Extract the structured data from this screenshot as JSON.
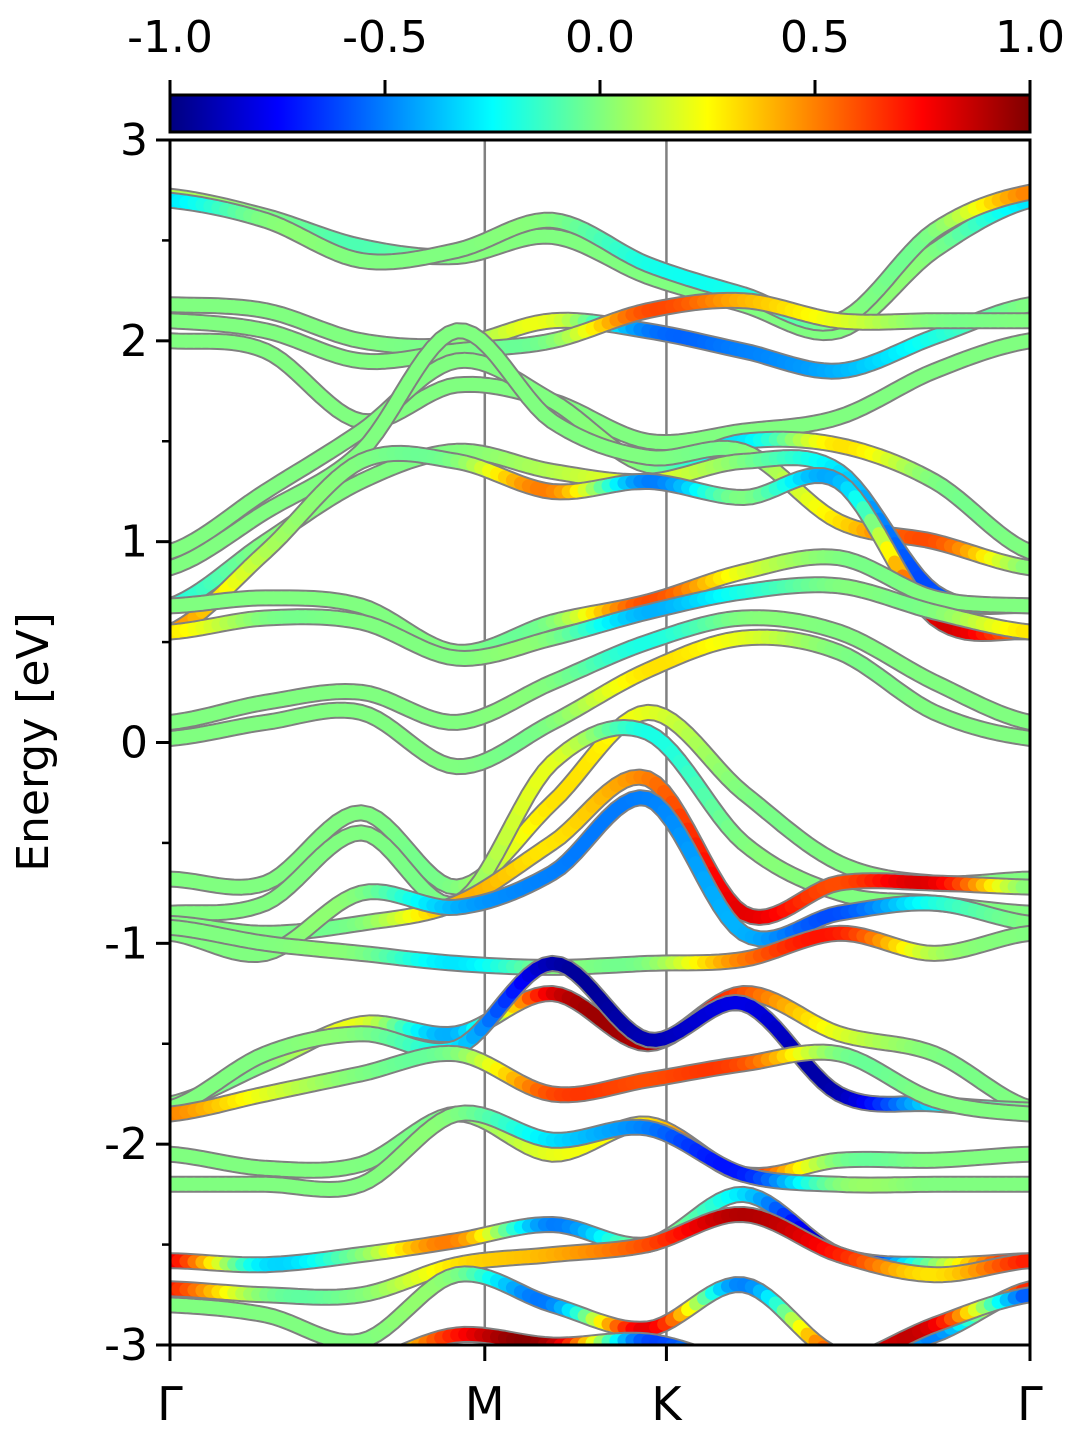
{
  "chart_data": {
    "type": "line",
    "subtype": "band-structure",
    "title": "",
    "ylabel": "Energy [eV]",
    "xlabel": "",
    "ylim": [
      -3,
      3
    ],
    "x_ticks": [
      {
        "label": "Γ",
        "k": 0.0
      },
      {
        "label": "M",
        "k": 1.0
      },
      {
        "label": "K",
        "k": 1.577
      },
      {
        "label": "Γ",
        "k": 2.732
      }
    ],
    "y_ticks": [
      "-3",
      "-2",
      "-1",
      "0",
      "1",
      "2",
      "3"
    ],
    "y_tick_values": [
      -3,
      -2,
      -1,
      0,
      1,
      2,
      3
    ],
    "y_minor_step": 0.5,
    "colorbar": {
      "colormap": "jet",
      "range": [
        -1.0,
        1.0
      ],
      "tick_labels": [
        "-1.0",
        "-0.5",
        "0.0",
        "0.5",
        "1.0"
      ],
      "tick_values": [
        -1.0,
        -0.5,
        0.0,
        0.5,
        1.0
      ]
    },
    "colors": {
      "outline": "#808080",
      "vline": "#808080",
      "neutral": "#8CFF6A"
    },
    "series": [
      {
        "values": [
          2.72,
          2.62,
          2.47,
          2.42,
          2.52,
          2.32,
          2.18,
          2.05,
          2.45,
          2.7
        ],
        "colors": [
          0.1,
          0.0,
          -0.1,
          0.0,
          0.0,
          0.0,
          0.0,
          0.0,
          0.0,
          -0.3
        ]
      },
      {
        "values": [
          2.7,
          2.6,
          2.4,
          2.45,
          2.6,
          2.38,
          2.23,
          2.1,
          2.55,
          2.74
        ],
        "colors": [
          -0.3,
          0.0,
          0.0,
          0.0,
          0.0,
          -0.2,
          -0.2,
          0.0,
          0.0,
          0.5
        ]
      },
      {
        "values": [
          2.18,
          2.15,
          2.0,
          1.98,
          2.1,
          2.05,
          1.95,
          1.85,
          2.02,
          2.18
        ],
        "colors": [
          0.0,
          0.0,
          0.0,
          0.0,
          0.2,
          -0.5,
          -0.5,
          -0.4,
          -0.2,
          0.0
        ]
      },
      {
        "values": [
          2.1,
          2.05,
          1.9,
          1.95,
          2.0,
          2.15,
          2.2,
          2.1,
          2.1,
          2.1
        ],
        "colors": [
          0.0,
          0.0,
          0.0,
          0.0,
          0.0,
          0.6,
          0.4,
          0.2,
          0.0,
          0.0
        ]
      },
      {
        "values": [
          2.0,
          1.95,
          1.6,
          1.78,
          1.7,
          1.5,
          1.55,
          1.62,
          1.85,
          2.0
        ],
        "colors": [
          0.0,
          0.0,
          0.0,
          0.0,
          0.0,
          0.0,
          0.0,
          0.0,
          0.0,
          0.0
        ]
      },
      {
        "values": [
          0.95,
          1.25,
          1.55,
          1.9,
          1.7,
          1.38,
          1.5,
          1.48,
          1.3,
          0.95
        ],
        "colors": [
          0.0,
          0.0,
          0.0,
          0.0,
          0.0,
          0.0,
          -0.3,
          0.3,
          0.0,
          0.0
        ]
      },
      {
        "values": [
          0.87,
          1.15,
          1.45,
          2.05,
          1.6,
          1.42,
          1.45,
          1.1,
          1.0,
          0.87
        ],
        "colors": [
          0.0,
          0.0,
          0.0,
          0.0,
          0.0,
          0.0,
          0.0,
          0.3,
          0.6,
          0.0
        ]
      },
      {
        "values": [
          0.68,
          1.0,
          1.3,
          1.45,
          1.35,
          1.3,
          1.4,
          1.35,
          0.75,
          0.68
        ],
        "colors": [
          -0.2,
          0.0,
          0.0,
          0.0,
          0.1,
          0.2,
          0.0,
          -0.3,
          -0.6,
          0.0
        ]
      },
      {
        "values": [
          0.55,
          0.95,
          1.4,
          1.4,
          1.25,
          1.3,
          1.22,
          1.3,
          0.62,
          0.55
        ],
        "colors": [
          0.5,
          0.1,
          0.0,
          0.0,
          0.5,
          -0.5,
          0.0,
          -0.4,
          0.8,
          0.5
        ]
      },
      {
        "values": [
          0.68,
          0.72,
          0.68,
          0.45,
          0.6,
          0.7,
          0.85,
          0.92,
          0.72,
          0.68
        ],
        "colors": [
          0.0,
          0.0,
          0.0,
          0.0,
          0.0,
          0.6,
          0.2,
          0.0,
          0.0,
          0.0
        ]
      },
      {
        "values": [
          0.55,
          0.62,
          0.6,
          0.42,
          0.52,
          0.65,
          0.75,
          0.78,
          0.65,
          0.55
        ],
        "colors": [
          0.3,
          0.0,
          0.0,
          0.0,
          0.0,
          -0.4,
          -0.2,
          0.0,
          0.0,
          0.3
        ]
      },
      {
        "values": [
          0.1,
          0.2,
          0.25,
          0.1,
          0.3,
          0.5,
          0.62,
          0.55,
          0.3,
          0.1
        ],
        "colors": [
          0.0,
          0.0,
          0.0,
          0.0,
          0.0,
          -0.2,
          0.0,
          0.0,
          0.0,
          0.0
        ]
      },
      {
        "values": [
          0.02,
          0.1,
          0.15,
          -0.12,
          0.1,
          0.36,
          0.52,
          0.45,
          0.15,
          0.02
        ],
        "colors": [
          0.0,
          0.0,
          0.0,
          0.0,
          0.0,
          0.3,
          0.2,
          0.0,
          0.0,
          0.0
        ]
      },
      {
        "values": [
          -0.68,
          -0.7,
          -0.35,
          -0.72,
          -0.3,
          0.15,
          -0.25,
          -0.6,
          -0.7,
          -0.68
        ],
        "colors": [
          0.0,
          0.0,
          0.0,
          0.0,
          0.3,
          0.2,
          0.0,
          0.0,
          0.0,
          0.0
        ]
      },
      {
        "values": [
          -0.85,
          -0.8,
          -0.45,
          -0.8,
          -0.1,
          0.05,
          -0.5,
          -0.75,
          -0.8,
          -0.85
        ],
        "colors": [
          0.0,
          0.0,
          0.0,
          0.0,
          0.2,
          -0.2,
          0.0,
          0.0,
          0.0,
          0.0
        ]
      },
      {
        "values": [
          -0.9,
          -0.95,
          -0.9,
          -0.8,
          -0.5,
          -0.18,
          -0.85,
          -0.7,
          -0.7,
          -0.72
        ],
        "colors": [
          0.0,
          0.0,
          0.0,
          0.4,
          0.3,
          0.5,
          0.8,
          0.6,
          0.8,
          0.0
        ]
      },
      {
        "values": [
          -0.95,
          -1.05,
          -0.75,
          -0.82,
          -0.65,
          -0.28,
          -0.95,
          -0.85,
          -0.8,
          -0.9
        ],
        "colors": [
          0.0,
          0.0,
          0.0,
          -0.4,
          -0.5,
          -0.5,
          -0.4,
          -0.6,
          -0.2,
          0.0
        ]
      },
      {
        "values": [
          -0.92,
          -1.0,
          -1.05,
          -1.1,
          -1.12,
          -1.1,
          -1.08,
          -0.95,
          -1.05,
          -0.95
        ],
        "colors": [
          0.0,
          0.0,
          0.0,
          -0.3,
          0.0,
          0.0,
          0.5,
          0.7,
          0.1,
          0.0
        ]
      },
      {
        "values": [
          -1.8,
          -1.6,
          -1.4,
          -1.45,
          -1.25,
          -1.5,
          -1.25,
          -1.45,
          -1.55,
          -1.82
        ],
        "colors": [
          0.0,
          0.0,
          0.2,
          -0.4,
          0.8,
          0.9,
          0.6,
          0.2,
          0.0,
          0.0
        ]
      },
      {
        "values": [
          -1.82,
          -1.55,
          -1.45,
          -1.52,
          -1.1,
          -1.48,
          -1.3,
          -1.75,
          -1.8,
          -1.83
        ],
        "colors": [
          0.0,
          0.0,
          0.0,
          -0.3,
          -0.9,
          -0.9,
          -0.8,
          -0.9,
          -0.3,
          0.0
        ]
      },
      {
        "values": [
          -1.85,
          -1.75,
          -1.65,
          -1.55,
          -1.75,
          -1.68,
          -1.6,
          -1.55,
          -1.78,
          -1.85
        ],
        "colors": [
          0.5,
          0.2,
          0.0,
          0.0,
          0.6,
          0.6,
          0.6,
          0.0,
          0.0,
          0.0
        ]
      },
      {
        "values": [
          -2.05,
          -2.12,
          -2.1,
          -1.85,
          -2.05,
          -1.9,
          -2.15,
          -2.08,
          -2.08,
          -2.05
        ],
        "colors": [
          0.0,
          0.0,
          0.0,
          0.0,
          0.2,
          0.3,
          0.7,
          0.0,
          0.0,
          0.0
        ]
      },
      {
        "values": [
          -2.2,
          -2.2,
          -2.2,
          -1.85,
          -1.98,
          -1.92,
          -2.15,
          -2.2,
          -2.2,
          -2.2
        ],
        "colors": [
          0.0,
          0.0,
          0.0,
          0.0,
          -0.3,
          -0.5,
          -0.7,
          0.0,
          0.0,
          0.0
        ]
      },
      {
        "values": [
          -2.58,
          -2.6,
          -2.55,
          -2.48,
          -2.4,
          -2.5,
          -2.25,
          -2.55,
          -2.6,
          -2.58
        ],
        "colors": [
          0.8,
          -0.3,
          0.0,
          0.5,
          -0.5,
          0.0,
          -0.3,
          -0.9,
          0.0,
          0.8
        ]
      },
      {
        "values": [
          -2.72,
          -2.75,
          -2.75,
          -2.6,
          -2.55,
          -2.5,
          -2.35,
          -2.55,
          -2.65,
          -2.58
        ],
        "colors": [
          0.7,
          0.0,
          0.0,
          0.3,
          0.4,
          0.6,
          0.9,
          0.7,
          0.3,
          0.7
        ]
      },
      {
        "values": [
          -2.8,
          -2.85,
          -2.98,
          -2.65,
          -2.8,
          -2.92,
          -2.7,
          -3.05,
          -2.95,
          -2.72
        ],
        "colors": [
          0.0,
          0.0,
          0.0,
          0.0,
          -0.5,
          0.8,
          -0.5,
          0.6,
          -0.5,
          0.7
        ]
      },
      {
        "values": [
          -3.1,
          -3.1,
          -3.1,
          -2.95,
          -3.0,
          -2.98,
          -3.1,
          -3.1,
          -2.9,
          -2.75
        ],
        "colors": [
          0.0,
          0.0,
          0.0,
          0.7,
          0.9,
          -0.6,
          0.0,
          0.6,
          0.8,
          -0.6
        ]
      }
    ]
  }
}
